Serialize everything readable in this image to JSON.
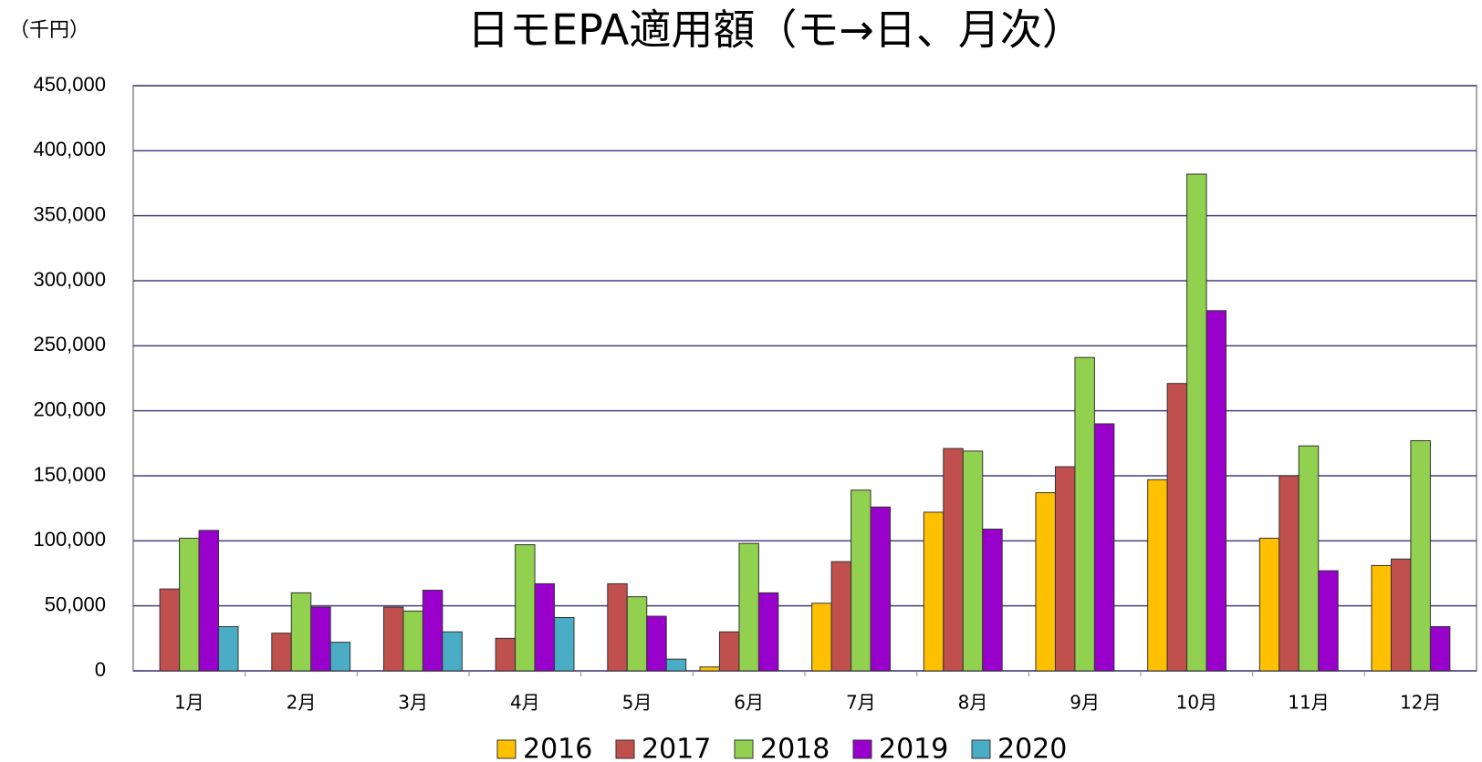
{
  "chart_data": {
    "type": "bar",
    "title": "日モEPA適用額（モ→日、月次）",
    "unit_label": "（千円）",
    "categories": [
      "1月",
      "2月",
      "3月",
      "4月",
      "5月",
      "6月",
      "7月",
      "8月",
      "9月",
      "10月",
      "11月",
      "12月"
    ],
    "series": [
      {
        "name": "2016",
        "color": "#ffc000",
        "values": [
          null,
          null,
          null,
          null,
          null,
          3000,
          52000,
          122000,
          137000,
          147000,
          102000,
          81000
        ]
      },
      {
        "name": "2017",
        "color": "#c0504d",
        "values": [
          63000,
          29000,
          49000,
          25000,
          67000,
          30000,
          84000,
          171000,
          157000,
          221000,
          150000,
          86000
        ]
      },
      {
        "name": "2018",
        "color": "#92d050",
        "values": [
          102000,
          60000,
          46000,
          97000,
          57000,
          98000,
          139000,
          169000,
          241000,
          382000,
          173000,
          177000
        ]
      },
      {
        "name": "2019",
        "color": "#9900cc",
        "values": [
          108000,
          49000,
          62000,
          67000,
          42000,
          60000,
          126000,
          109000,
          190000,
          277000,
          77000,
          34000
        ]
      },
      {
        "name": "2020",
        "color": "#4bacc6",
        "values": [
          34000,
          22000,
          30000,
          41000,
          9000,
          null,
          null,
          null,
          null,
          null,
          null,
          null
        ]
      }
    ],
    "ylim": [
      0,
      450000
    ],
    "yticks": [
      0,
      {
        "value": 50000,
        "label": "50,000"
      },
      {
        "value": 100000,
        "label": "100,000"
      },
      {
        "value": 150000,
        "label": "150,000"
      },
      {
        "value": 200000,
        "label": "200,000"
      },
      {
        "value": 250000,
        "label": "250,000"
      },
      {
        "value": 300000,
        "label": "300,000"
      },
      {
        "value": 350000,
        "label": "350,000"
      },
      {
        "value": 400000,
        "label": "400,000"
      },
      {
        "value": 450000,
        "label": "450,000"
      }
    ],
    "grid": true,
    "grid_color": "#4a3f7e",
    "legend": "bottom"
  }
}
